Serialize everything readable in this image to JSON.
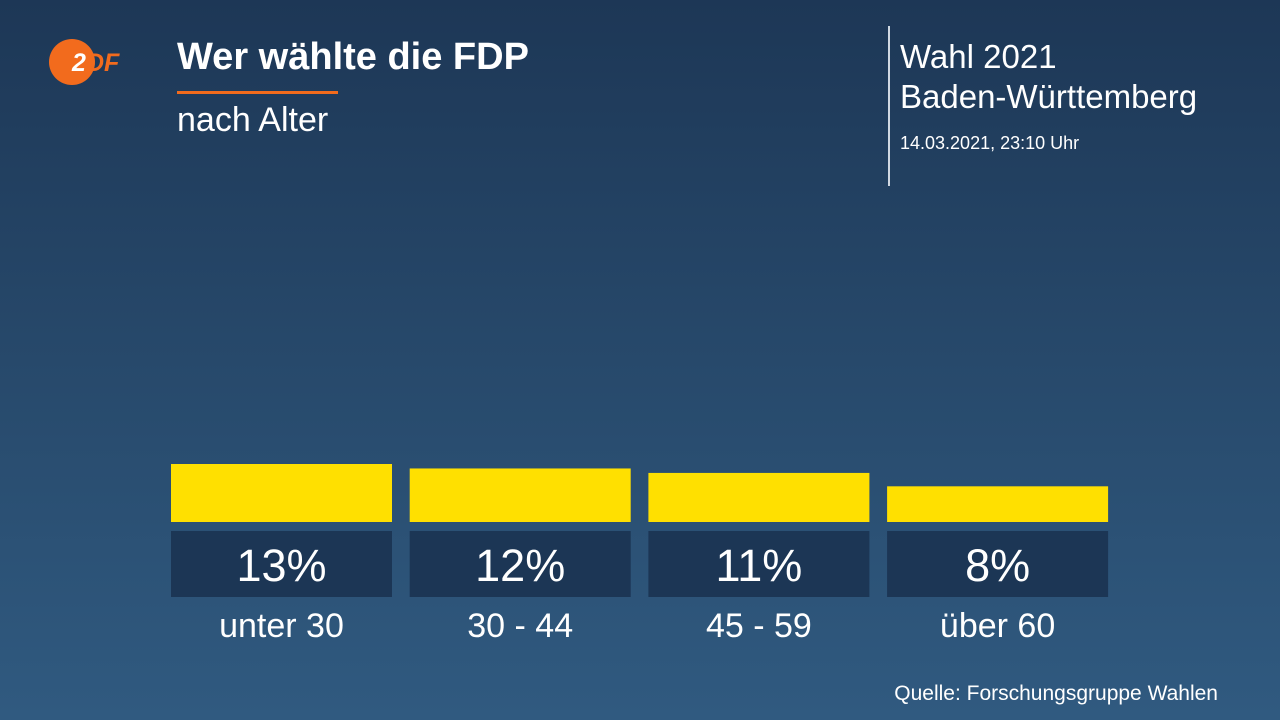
{
  "header": {
    "title": "Wer wählte die FDP",
    "subtitle": "nach Alter",
    "election_title": "Wahl 2021",
    "region": "Baden-Württemberg",
    "timestamp": "14.03.2021, 23:10 Uhr"
  },
  "logo": {
    "text": "2DF",
    "icon": "zdf-logo-icon"
  },
  "source": "Quelle: Forschungsgruppe Wahlen",
  "colors": {
    "bar": "#ffe000",
    "value_box": "#1c3655",
    "accent": "#f26b1d"
  },
  "chart_data": {
    "type": "bar",
    "categories": [
      "unter 30",
      "30 - 44",
      "45 - 59",
      "über 60"
    ],
    "values": [
      13,
      12,
      11,
      8
    ],
    "value_labels": [
      "13%",
      "12%",
      "11%",
      "8%"
    ],
    "unit": "%",
    "title": "Wer wählte die FDP",
    "subtitle": "nach Alter",
    "xlabel": "",
    "ylabel": "",
    "grid": false,
    "legend": "none"
  }
}
